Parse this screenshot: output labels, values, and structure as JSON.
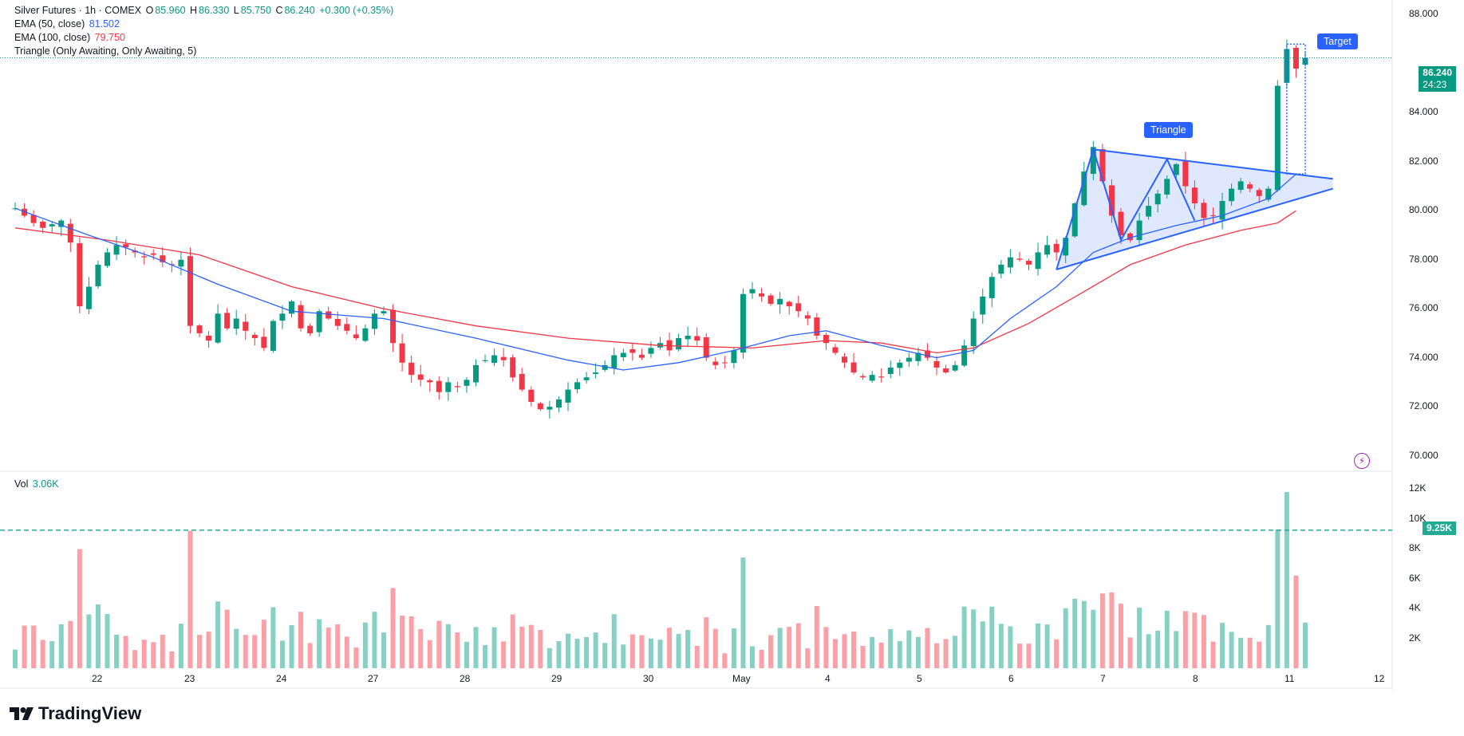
{
  "legend": {
    "symbol": "Silver Futures · 1h · COMEX",
    "o_label": "O",
    "o": "85.960",
    "h_label": "H",
    "h": "86.330",
    "l_label": "L",
    "l": "85.750",
    "c_label": "C",
    "c": "86.240",
    "change": "+0.300 (+0.35%)",
    "ema50_label": "EMA (50, close)",
    "ema50_value": "81.502",
    "ema100_label": "EMA (100, close)",
    "ema100_value": "79.750",
    "triangle_label": "Triangle (Only Awaiting, Only Awaiting, 5)",
    "vol_label": "Vol",
    "vol_value": "3.06K"
  },
  "annotations": {
    "triangle": "Triangle",
    "target": "Target"
  },
  "price_tag": {
    "price": "86.240",
    "countdown": "24:23"
  },
  "volume_tag": "9.25K",
  "branding": "TradingView",
  "colors": {
    "up": "#089981",
    "down": "#f23645",
    "ema50": "#2962ff",
    "ema100": "#f23645",
    "pattern": "#2962ff"
  },
  "chart_data": {
    "type": "candlestick",
    "title": "Silver Futures · 1h · COMEX",
    "price_axis": {
      "ticks": [
        "88.000",
        "84.000",
        "82.000",
        "80.000",
        "78.000",
        "76.000",
        "74.000",
        "72.000",
        "70.000"
      ],
      "ylim": [
        69.4,
        88.6
      ]
    },
    "volume_axis": {
      "ticks": [
        "12K",
        "10K",
        "8K",
        "6K",
        "4K",
        "2K"
      ],
      "ylim": [
        0,
        12500
      ]
    },
    "x_ticks": [
      "22",
      "23",
      "24",
      "27",
      "28",
      "29",
      "30",
      "May",
      "4",
      "5",
      "6",
      "7",
      "8",
      "11",
      "12"
    ],
    "last": {
      "open": 85.96,
      "high": 86.33,
      "low": 85.75,
      "close": 86.24,
      "volume": 3060
    },
    "ema50_last": 81.502,
    "ema100_last": 79.75,
    "avg_volume_line": 9250,
    "price_path": [
      [
        0,
        80.1
      ],
      [
        2,
        79.5
      ],
      [
        3,
        79.3
      ],
      [
        5,
        79.6
      ],
      [
        6,
        78.7
      ],
      [
        6.3,
        76.6
      ],
      [
        6.8,
        76.3
      ],
      [
        7.4,
        75.7
      ],
      [
        8.2,
        77.3
      ],
      [
        9,
        77.8
      ],
      [
        10,
        78.3
      ],
      [
        11,
        78.6
      ],
      [
        12,
        78.5
      ],
      [
        13,
        78.3
      ],
      [
        14,
        78.1
      ],
      [
        15,
        78.2
      ],
      [
        16,
        77.9
      ],
      [
        17,
        77.8
      ],
      [
        18,
        78.0
      ],
      [
        18.4,
        75.6
      ],
      [
        19,
        75.3
      ],
      [
        20,
        75.0
      ],
      [
        21,
        74.7
      ],
      [
        21.6,
        76.4
      ],
      [
        22,
        75.8
      ],
      [
        23,
        75.2
      ],
      [
        24,
        75.6
      ],
      [
        25,
        75.1
      ],
      [
        26,
        74.8
      ],
      [
        27,
        74.4
      ],
      [
        28,
        75.5
      ],
      [
        29,
        75.8
      ],
      [
        30,
        76.3
      ],
      [
        31,
        75.2
      ],
      [
        32,
        75.0
      ],
      [
        33,
        75.9
      ],
      [
        34,
        75.6
      ],
      [
        35,
        75.3
      ],
      [
        36,
        75.1
      ],
      [
        37,
        74.8
      ],
      [
        38,
        75.2
      ],
      [
        39,
        75.8
      ],
      [
        40,
        75.9
      ],
      [
        41,
        74.6
      ],
      [
        42,
        73.8
      ],
      [
        43,
        73.3
      ],
      [
        44,
        73.1
      ],
      [
        45,
        73.0
      ],
      [
        46,
        72.6
      ],
      [
        47,
        73.0
      ],
      [
        48,
        72.8
      ],
      [
        49,
        73.1
      ],
      [
        50,
        73.7
      ],
      [
        51,
        73.9
      ],
      [
        52,
        74.1
      ],
      [
        53,
        73.9
      ],
      [
        54,
        73.2
      ],
      [
        55,
        72.7
      ],
      [
        56,
        72.2
      ],
      [
        57,
        71.9
      ],
      [
        58,
        72.0
      ],
      [
        59,
        72.3
      ],
      [
        60,
        72.7
      ],
      [
        61,
        73.0
      ],
      [
        62,
        73.2
      ],
      [
        63,
        73.4
      ],
      [
        64,
        73.7
      ],
      [
        65,
        74.1
      ],
      [
        66,
        74.2
      ],
      [
        67,
        74.2
      ],
      [
        68,
        74.0
      ],
      [
        69,
        74.4
      ],
      [
        70,
        74.6
      ],
      [
        71,
        74.3
      ],
      [
        72,
        74.8
      ],
      [
        73,
        74.9
      ],
      [
        74,
        74.7
      ],
      [
        75,
        74.0
      ],
      [
        76,
        73.7
      ],
      [
        77,
        73.8
      ],
      [
        78,
        74.3
      ],
      [
        79,
        76.6
      ],
      [
        80,
        76.8
      ],
      [
        81,
        76.5
      ],
      [
        82,
        76.2
      ],
      [
        83,
        76.4
      ],
      [
        84,
        76.1
      ],
      [
        85,
        75.9
      ],
      [
        86,
        75.6
      ],
      [
        87,
        74.9
      ],
      [
        88,
        74.6
      ],
      [
        89,
        74.2
      ],
      [
        90,
        73.8
      ],
      [
        91,
        73.4
      ],
      [
        92,
        73.2
      ],
      [
        93,
        73.3
      ],
      [
        94,
        73.2
      ],
      [
        95,
        73.6
      ],
      [
        96,
        73.8
      ],
      [
        97,
        74.0
      ],
      [
        98,
        74.2
      ],
      [
        99,
        74.0
      ],
      [
        100,
        73.6
      ],
      [
        101,
        73.4
      ],
      [
        102,
        73.7
      ],
      [
        103,
        74.5
      ],
      [
        104,
        75.6
      ],
      [
        105,
        76.5
      ],
      [
        106,
        77.3
      ],
      [
        107,
        77.8
      ],
      [
        108,
        78.1
      ],
      [
        109,
        78.0
      ],
      [
        110,
        77.8
      ],
      [
        111,
        78.3
      ],
      [
        112,
        78.6
      ],
      [
        113,
        78.3
      ],
      [
        114,
        78.9
      ],
      [
        115,
        80.3
      ],
      [
        116,
        81.6
      ],
      [
        117,
        82.6
      ],
      [
        118,
        81.2
      ],
      [
        119,
        79.8
      ],
      [
        120,
        79.0
      ],
      [
        121,
        78.8
      ],
      [
        122,
        79.6
      ],
      [
        123,
        80.2
      ],
      [
        124,
        80.7
      ],
      [
        125,
        81.3
      ],
      [
        126,
        81.9
      ],
      [
        127,
        81.0
      ],
      [
        128,
        80.3
      ],
      [
        129,
        79.7
      ],
      [
        130,
        79.8
      ],
      [
        131,
        80.4
      ],
      [
        132,
        80.9
      ],
      [
        133,
        81.2
      ],
      [
        134,
        80.9
      ],
      [
        135,
        80.6
      ],
      [
        136,
        80.9
      ],
      [
        137,
        85.1
      ],
      [
        138,
        86.6
      ],
      [
        139,
        85.8
      ],
      [
        140,
        86.24
      ]
    ],
    "ema50_path": [
      [
        0,
        80.1
      ],
      [
        8,
        79.0
      ],
      [
        15,
        78.1
      ],
      [
        22,
        77.0
      ],
      [
        30,
        75.9
      ],
      [
        40,
        75.6
      ],
      [
        50,
        74.8
      ],
      [
        60,
        73.9
      ],
      [
        66,
        73.5
      ],
      [
        72,
        73.8
      ],
      [
        78,
        74.3
      ],
      [
        84,
        74.9
      ],
      [
        88,
        75.1
      ],
      [
        94,
        74.5
      ],
      [
        100,
        74.0
      ],
      [
        104,
        74.3
      ],
      [
        108,
        75.6
      ],
      [
        113,
        76.9
      ],
      [
        117,
        78.3
      ],
      [
        121,
        78.9
      ],
      [
        126,
        79.4
      ],
      [
        131,
        79.8
      ],
      [
        136,
        80.5
      ],
      [
        139,
        81.5
      ]
    ],
    "ema100_path": [
      [
        0,
        79.3
      ],
      [
        10,
        78.8
      ],
      [
        20,
        78.2
      ],
      [
        30,
        76.9
      ],
      [
        40,
        76.0
      ],
      [
        50,
        75.3
      ],
      [
        60,
        74.8
      ],
      [
        70,
        74.5
      ],
      [
        80,
        74.4
      ],
      [
        88,
        74.7
      ],
      [
        94,
        74.6
      ],
      [
        100,
        74.2
      ],
      [
        104,
        74.4
      ],
      [
        110,
        75.4
      ],
      [
        116,
        76.7
      ],
      [
        121,
        77.8
      ],
      [
        127,
        78.6
      ],
      [
        133,
        79.2
      ],
      [
        137,
        79.5
      ],
      [
        139,
        80.0
      ]
    ],
    "triangle_pattern": {
      "zigzag": [
        [
          113,
          77.6
        ],
        [
          117,
          82.5
        ],
        [
          120,
          78.8
        ],
        [
          125,
          82.1
        ],
        [
          128,
          79.6
        ]
      ],
      "upper_edge": [
        [
          117,
          82.5
        ],
        [
          143,
          81.3
        ]
      ],
      "lower_edge": [
        [
          113,
          77.6
        ],
        [
          143,
          80.9
        ]
      ],
      "target_box": {
        "x": [
          138,
          140
        ],
        "y": [
          81.5,
          86.8
        ]
      }
    }
  }
}
